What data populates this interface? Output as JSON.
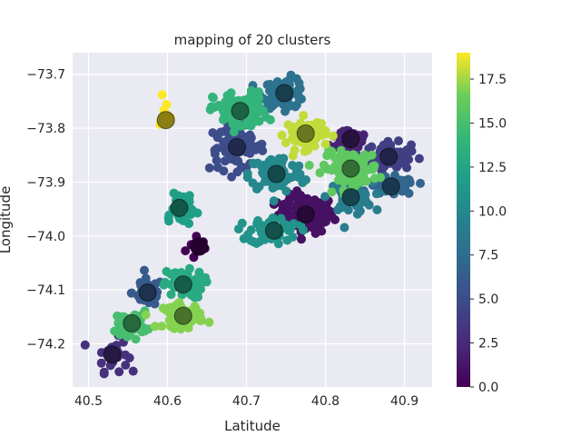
{
  "chart_data": {
    "type": "scatter",
    "title": "mapping of 20 clusters",
    "xlabel": "Latitude",
    "ylabel": "Longitude",
    "xlim": [
      40.48,
      40.935
    ],
    "ylim": [
      -74.28,
      -73.66
    ],
    "x_ticks": [
      40.5,
      40.6,
      40.7,
      40.8,
      40.9
    ],
    "x_tick_labels": [
      "40.5",
      "40.6",
      "40.7",
      "40.8",
      "40.9"
    ],
    "y_ticks": [
      -73.7,
      -73.8,
      -73.9,
      -74.0,
      -74.1,
      -74.2
    ],
    "y_tick_labels": [
      "−73.7",
      "−73.8",
      "−73.9",
      "−74.0",
      "−74.1",
      "−74.2"
    ],
    "grid": true,
    "colorbar": {
      "colormap": "viridis",
      "range": [
        0,
        19
      ],
      "ticks": [
        0.0,
        2.5,
        5.0,
        7.5,
        10.0,
        12.5,
        15.0,
        17.5
      ],
      "tick_labels": [
        "0.0",
        "2.5",
        "5.0",
        "7.5",
        "10.0",
        "12.5",
        "15.0",
        "17.5"
      ]
    },
    "clusters": [
      {
        "id": 0,
        "centroid": [
          40.64,
          -74.02
        ],
        "spread": [
          0.012,
          0.02
        ],
        "count": 12
      },
      {
        "id": 1,
        "centroid": [
          40.775,
          -73.96
        ],
        "spread": [
          0.025,
          0.025
        ],
        "count": 120
      },
      {
        "id": 2,
        "centroid": [
          40.832,
          -73.82
        ],
        "spread": [
          0.018,
          0.02
        ],
        "count": 35
      },
      {
        "id": 3,
        "centroid": [
          40.53,
          -74.22
        ],
        "spread": [
          0.014,
          0.022
        ],
        "count": 30
      },
      {
        "id": 4,
        "centroid": [
          40.88,
          -73.853
        ],
        "spread": [
          0.02,
          0.018
        ],
        "count": 70
      },
      {
        "id": 5,
        "centroid": [
          40.688,
          -73.835
        ],
        "spread": [
          0.025,
          0.03
        ],
        "count": 80
      },
      {
        "id": 6,
        "centroid": [
          40.575,
          -74.105
        ],
        "spread": [
          0.014,
          0.018
        ],
        "count": 45
      },
      {
        "id": 7,
        "centroid": [
          40.883,
          -73.908
        ],
        "spread": [
          0.022,
          0.012
        ],
        "count": 60
      },
      {
        "id": 8,
        "centroid": [
          40.748,
          -73.735
        ],
        "spread": [
          0.02,
          0.02
        ],
        "count": 70
      },
      {
        "id": 9,
        "centroid": [
          40.832,
          -73.928
        ],
        "spread": [
          0.02,
          0.02
        ],
        "count": 60
      },
      {
        "id": 10,
        "centroid": [
          40.738,
          -73.885
        ],
        "spread": [
          0.025,
          0.025
        ],
        "count": 80
      },
      {
        "id": 11,
        "centroid": [
          40.735,
          -73.99
        ],
        "spread": [
          0.022,
          0.018
        ],
        "count": 60
      },
      {
        "id": 12,
        "centroid": [
          40.615,
          -73.948
        ],
        "spread": [
          0.018,
          0.03
        ],
        "count": 30
      },
      {
        "id": 13,
        "centroid": [
          40.62,
          -74.09
        ],
        "spread": [
          0.018,
          0.018
        ],
        "count": 60
      },
      {
        "id": 14,
        "centroid": [
          40.692,
          -73.768
        ],
        "spread": [
          0.024,
          0.025
        ],
        "count": 90
      },
      {
        "id": 15,
        "centroid": [
          40.555,
          -74.162
        ],
        "spread": [
          0.014,
          0.016
        ],
        "count": 50
      },
      {
        "id": 16,
        "centroid": [
          40.832,
          -73.875
        ],
        "spread": [
          0.025,
          0.022
        ],
        "count": 110
      },
      {
        "id": 17,
        "centroid": [
          40.62,
          -74.148
        ],
        "spread": [
          0.018,
          0.016
        ],
        "count": 60
      },
      {
        "id": 18,
        "centroid": [
          40.775,
          -73.81
        ],
        "spread": [
          0.018,
          0.02
        ],
        "count": 70
      },
      {
        "id": 19,
        "centroid": [
          40.598,
          -73.785
        ],
        "spread": [
          0.006,
          0.03
        ],
        "count": 8
      }
    ]
  }
}
